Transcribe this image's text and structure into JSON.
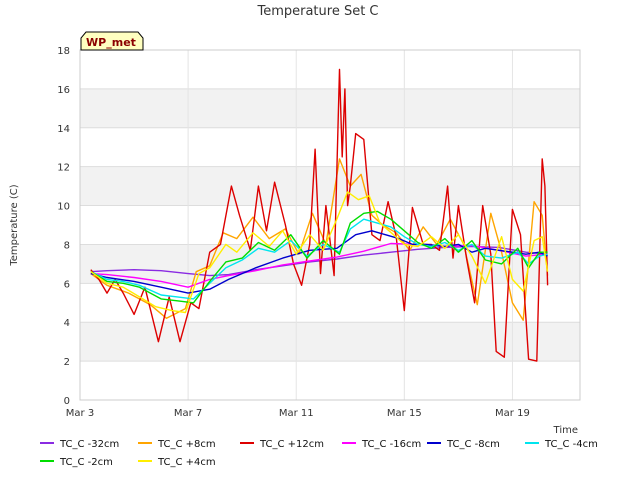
{
  "chart_data": {
    "type": "line",
    "title": "Temperature Set C",
    "xlabel": "Time",
    "ylabel": "Temperature (C)",
    "badge": "WP_met",
    "xlim": [
      3.0,
      21.5
    ],
    "ylim": [
      0,
      18
    ],
    "x_ticks": [
      {
        "value": 3,
        "label": "Mar 3"
      },
      {
        "value": 7,
        "label": "Mar 7"
      },
      {
        "value": 11,
        "label": "Mar 11"
      },
      {
        "value": 15,
        "label": "Mar 15"
      },
      {
        "value": 19,
        "label": "Mar 19"
      }
    ],
    "y_ticks": [
      0,
      2,
      4,
      6,
      8,
      10,
      12,
      14,
      16,
      18
    ],
    "grid": true,
    "legend_position": "bottom",
    "series": [
      {
        "name": "TC_C -32cm",
        "color": "#8a2be2",
        "x": [
          3.4,
          4.0,
          5.0,
          6.0,
          7.0,
          7.8,
          8.5,
          9.5,
          10.5,
          11.5,
          12.5,
          13.5,
          14.5,
          15.5,
          16.5,
          17.5,
          18.5,
          19.5,
          20.3
        ],
        "y": [
          6.6,
          6.65,
          6.7,
          6.65,
          6.5,
          6.4,
          6.45,
          6.7,
          6.9,
          7.1,
          7.25,
          7.45,
          7.6,
          7.75,
          7.85,
          7.9,
          7.85,
          7.6,
          7.5
        ]
      },
      {
        "name": "TC_C +8cm",
        "color": "#ffa500",
        "x": [
          3.4,
          4.0,
          4.8,
          5.6,
          6.2,
          6.9,
          7.3,
          7.8,
          8.3,
          8.8,
          9.4,
          10.0,
          10.6,
          11.1,
          11.6,
          12.1,
          12.6,
          13.0,
          13.4,
          13.8,
          14.2,
          14.7,
          15.2,
          15.7,
          16.2,
          16.7,
          17.2,
          17.7,
          18.2,
          18.6,
          19.0,
          19.4,
          19.8,
          20.1,
          20.3
        ],
        "y": [
          6.5,
          5.9,
          5.5,
          4.9,
          4.2,
          4.7,
          6.6,
          6.9,
          8.6,
          8.3,
          9.4,
          8.3,
          8.8,
          7.5,
          9.6,
          8.0,
          12.4,
          11.0,
          11.6,
          9.5,
          9.0,
          8.6,
          7.7,
          8.9,
          8.0,
          9.3,
          8.0,
          4.9,
          9.6,
          7.6,
          5.0,
          4.1,
          10.2,
          9.5,
          6.4
        ]
      },
      {
        "name": "TC_C +12cm",
        "color": "#dd0000",
        "x": [
          3.4,
          3.7,
          4.0,
          4.3,
          4.6,
          5.0,
          5.4,
          5.9,
          6.3,
          6.7,
          7.1,
          7.4,
          7.8,
          8.2,
          8.6,
          8.9,
          9.3,
          9.6,
          9.9,
          10.2,
          10.6,
          10.9,
          11.2,
          11.5,
          11.7,
          11.9,
          12.1,
          12.4,
          12.6,
          12.7,
          12.8,
          12.9,
          13.0,
          13.2,
          13.5,
          13.8,
          14.1,
          14.4,
          14.7,
          15.0,
          15.3,
          15.7,
          16.0,
          16.3,
          16.6,
          16.8,
          17.0,
          17.3,
          17.6,
          17.9,
          18.2,
          18.4,
          18.7,
          19.0,
          19.3,
          19.6,
          19.9,
          20.1,
          20.2,
          20.3
        ],
        "y": [
          6.7,
          6.2,
          5.5,
          6.2,
          5.5,
          4.4,
          5.8,
          3.0,
          5.3,
          3.0,
          5.0,
          4.7,
          7.6,
          8.0,
          11.0,
          9.5,
          7.7,
          11.0,
          8.7,
          11.2,
          9.0,
          7.0,
          5.9,
          8.0,
          12.9,
          6.5,
          10.0,
          6.4,
          17.0,
          12.5,
          16.0,
          10.0,
          11.0,
          13.7,
          13.4,
          8.5,
          8.2,
          10.2,
          8.4,
          4.6,
          9.9,
          8.0,
          8.0,
          7.7,
          11.0,
          7.3,
          10.0,
          7.3,
          5.0,
          10.0,
          7.5,
          2.5,
          2.2,
          9.8,
          8.5,
          2.1,
          2.0,
          12.4,
          11.0,
          5.9
        ]
      },
      {
        "name": "TC_C -16cm",
        "color": "#ff00ff",
        "x": [
          3.4,
          4.0,
          5.0,
          6.0,
          7.0,
          7.8,
          8.5,
          9.5,
          10.5,
          11.5,
          12.5,
          13.5,
          14.5,
          15.5,
          16.5,
          17.5,
          18.5,
          19.5,
          20.3
        ],
        "y": [
          6.5,
          6.45,
          6.3,
          6.1,
          5.8,
          6.2,
          6.4,
          6.65,
          6.95,
          7.15,
          7.35,
          7.65,
          8.05,
          8.0,
          7.9,
          7.95,
          7.7,
          7.4,
          7.5
        ]
      },
      {
        "name": "TC_C -8cm",
        "color": "#0000cd",
        "x": [
          3.4,
          4.0,
          5.0,
          6.0,
          7.0,
          7.8,
          8.5,
          9.5,
          10.5,
          11.5,
          12.5,
          13.2,
          13.8,
          14.3,
          14.8,
          15.3,
          15.8,
          16.5,
          17.0,
          17.5,
          18.0,
          18.5,
          19.0,
          19.5,
          20.0,
          20.3
        ],
        "y": [
          6.5,
          6.3,
          6.1,
          5.8,
          5.5,
          5.7,
          6.2,
          6.8,
          7.3,
          7.7,
          7.8,
          8.5,
          8.7,
          8.5,
          8.3,
          8.0,
          8.0,
          7.9,
          8.0,
          7.6,
          7.8,
          7.7,
          7.6,
          7.5,
          7.6,
          7.4
        ]
      },
      {
        "name": "TC_C -4cm",
        "color": "#00e5ee",
        "x": [
          3.4,
          4.0,
          4.6,
          5.2,
          6.0,
          6.6,
          7.2,
          7.8,
          8.4,
          9.0,
          9.6,
          10.2,
          10.8,
          11.4,
          12.0,
          12.6,
          13.0,
          13.5,
          14.0,
          14.5,
          15.0,
          15.5,
          16.0,
          16.5,
          17.0,
          17.5,
          18.0,
          18.6,
          19.2,
          19.6,
          20.0,
          20.3
        ],
        "y": [
          6.6,
          6.2,
          6.1,
          5.9,
          5.4,
          5.3,
          5.2,
          6.0,
          6.8,
          7.2,
          7.8,
          7.6,
          8.2,
          7.4,
          8.0,
          7.6,
          8.8,
          9.3,
          9.1,
          8.9,
          8.4,
          8.0,
          7.9,
          8.1,
          7.7,
          8.0,
          7.4,
          7.3,
          7.6,
          7.0,
          7.4,
          7.5
        ]
      },
      {
        "name": "TC_C -2cm",
        "color": "#00dd00",
        "x": [
          3.4,
          4.0,
          4.6,
          5.2,
          6.0,
          6.6,
          7.2,
          7.8,
          8.4,
          9.0,
          9.6,
          10.2,
          10.8,
          11.4,
          12.0,
          12.6,
          13.0,
          13.5,
          14.0,
          14.5,
          15.0,
          15.5,
          16.0,
          16.5,
          17.0,
          17.5,
          18.0,
          18.6,
          19.2,
          19.6,
          20.0,
          20.3
        ],
        "y": [
          6.6,
          6.1,
          6.0,
          5.8,
          5.2,
          5.1,
          5.0,
          6.1,
          7.1,
          7.3,
          8.1,
          7.7,
          8.5,
          7.3,
          8.2,
          7.5,
          9.1,
          9.6,
          9.7,
          9.3,
          8.7,
          8.1,
          7.8,
          8.3,
          7.6,
          8.2,
          7.2,
          7.0,
          7.8,
          6.8,
          7.6,
          7.6
        ]
      },
      {
        "name": "TC_C +4cm",
        "color": "#ffee00",
        "x": [
          3.4,
          4.0,
          4.6,
          5.2,
          5.8,
          6.4,
          6.9,
          7.4,
          7.8,
          8.4,
          8.8,
          9.4,
          10.0,
          10.5,
          11.0,
          11.5,
          12.0,
          12.5,
          12.9,
          13.3,
          13.7,
          14.1,
          14.6,
          15.0,
          15.5,
          16.0,
          16.5,
          17.0,
          17.5,
          18.0,
          18.6,
          19.0,
          19.4,
          19.8,
          20.1,
          20.3
        ],
        "y": [
          6.6,
          6.0,
          5.8,
          5.3,
          4.8,
          4.6,
          4.5,
          6.5,
          6.8,
          8.0,
          7.6,
          8.6,
          7.9,
          8.7,
          7.5,
          8.5,
          7.7,
          9.3,
          10.7,
          10.3,
          10.5,
          9.1,
          8.5,
          8.0,
          7.9,
          8.4,
          7.8,
          8.5,
          7.4,
          6.0,
          8.4,
          6.2,
          5.6,
          8.2,
          8.4,
          6.6
        ]
      }
    ]
  }
}
